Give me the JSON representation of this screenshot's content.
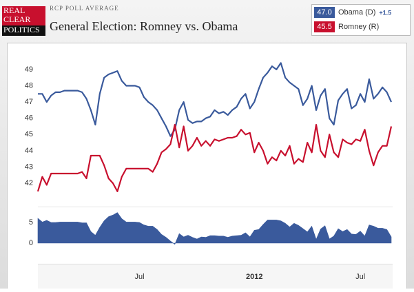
{
  "header": {
    "logo": [
      "REAL",
      "CLEAR",
      "POLITICS"
    ],
    "kicker": "RCP POLL AVERAGE",
    "title": "General Election: Romney vs. Obama"
  },
  "chart_data": [
    {
      "type": "line",
      "categories": [
        null,
        null,
        null,
        null,
        null,
        null,
        null,
        null,
        null,
        null,
        null,
        null,
        null,
        null,
        null,
        null,
        null,
        null,
        null,
        null,
        null,
        null,
        null,
        "Jul",
        null,
        null,
        null,
        null,
        null,
        null,
        null,
        null,
        null,
        null,
        null,
        null,
        null,
        null,
        null,
        null,
        null,
        null,
        null,
        null,
        null,
        null,
        null,
        null,
        null,
        "2012",
        null,
        null,
        null,
        null,
        null,
        null,
        null,
        null,
        null,
        null,
        null,
        null,
        null,
        null,
        null,
        null,
        null,
        null,
        null,
        null,
        null,
        null,
        null,
        "Jul",
        null,
        null,
        null,
        null,
        null,
        null,
        null
      ],
      "series": [
        {
          "name": "Obama (D)",
          "color": "#3a5a9c",
          "latest_label": "47.0",
          "values": [
            47.5,
            47.5,
            47.0,
            47.4,
            47.6,
            47.6,
            47.7,
            47.7,
            47.7,
            47.7,
            47.6,
            47.2,
            46.5,
            45.6,
            47.5,
            48.5,
            48.7,
            48.8,
            48.9,
            48.3,
            48.0,
            48.0,
            48.0,
            47.9,
            47.3,
            47.0,
            46.8,
            46.5,
            46.0,
            45.5,
            44.9,
            45.3,
            46.5,
            47.0,
            45.9,
            45.7,
            45.8,
            45.8,
            46.0,
            46.1,
            46.5,
            46.3,
            46.4,
            46.2,
            46.5,
            46.7,
            47.2,
            47.5,
            46.6,
            47.0,
            47.8,
            48.5,
            48.8,
            49.2,
            49.0,
            49.4,
            48.5,
            48.2,
            48.0,
            47.8,
            46.8,
            47.2,
            48.0,
            46.5,
            47.4,
            47.8,
            46.0,
            45.6,
            47.1,
            47.5,
            47.8,
            46.6,
            46.8,
            47.5,
            47.0,
            48.4,
            47.2,
            47.5,
            47.9,
            47.6,
            47.0
          ]
        },
        {
          "name": "Romney (R)",
          "color": "#c8102e",
          "latest_label": "45.5",
          "values": [
            41.5,
            42.4,
            41.9,
            42.6,
            42.6,
            42.6,
            42.6,
            42.6,
            42.6,
            42.6,
            42.7,
            42.3,
            43.7,
            43.7,
            43.7,
            43.1,
            42.3,
            42.0,
            41.5,
            42.4,
            42.9,
            42.9,
            42.9,
            42.9,
            42.9,
            42.9,
            42.7,
            43.2,
            43.9,
            44.1,
            44.4,
            45.6,
            44.2,
            45.5,
            44.0,
            44.3,
            44.8,
            44.3,
            44.6,
            44.3,
            44.7,
            44.6,
            44.7,
            44.8,
            44.8,
            44.9,
            45.3,
            45.0,
            45.1,
            43.9,
            44.5,
            44.0,
            43.2,
            43.6,
            43.4,
            44.0,
            43.7,
            44.3,
            43.2,
            43.5,
            43.3,
            44.5,
            43.9,
            45.6,
            44.0,
            43.6,
            45.0,
            43.9,
            43.6,
            44.7,
            44.5,
            44.4,
            44.7,
            44.6,
            45.3,
            44.0,
            43.1,
            43.9,
            44.3,
            44.3,
            45.5
          ]
        }
      ],
      "ylim": [
        41.2,
        49.8
      ],
      "yticks": [
        42,
        43,
        44,
        45,
        46,
        47,
        48,
        49
      ]
    },
    {
      "type": "area",
      "color": "#3a5a9c",
      "latest_label": "+1.5",
      "values": [
        6.0,
        5.1,
        5.5,
        5.0,
        5.0,
        5.1,
        5.1,
        5.1,
        5.1,
        5.1,
        4.9,
        4.9,
        2.8,
        1.9,
        3.8,
        5.4,
        6.4,
        6.8,
        7.4,
        5.9,
        5.1,
        5.1,
        5.1,
        5.0,
        4.4,
        4.1,
        4.1,
        3.3,
        2.1,
        1.4,
        0.5,
        -0.3,
        2.3,
        1.5,
        1.9,
        1.4,
        1.0,
        1.5,
        1.4,
        1.8,
        1.8,
        1.7,
        1.7,
        1.4,
        1.7,
        1.8,
        1.9,
        2.5,
        1.5,
        3.1,
        3.3,
        4.5,
        5.6,
        5.6,
        5.6,
        5.4,
        4.8,
        3.9,
        4.8,
        4.3,
        3.5,
        2.7,
        4.1,
        0.9,
        3.4,
        4.2,
        1.0,
        1.7,
        3.5,
        2.8,
        3.3,
        2.2,
        2.1,
        2.9,
        1.7,
        4.4,
        4.1,
        3.6,
        3.6,
        3.3,
        1.5
      ],
      "ylim": [
        -2,
        7.5
      ],
      "yticks": [
        0,
        5
      ]
    }
  ]
}
